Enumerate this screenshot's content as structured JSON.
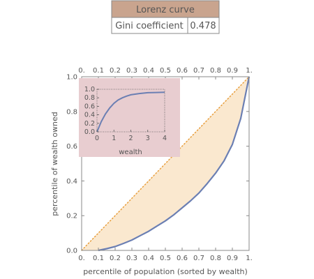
{
  "info_table": {
    "header": "Lorenz curve",
    "row_label": "Gini coefficient",
    "row_value": "0.478"
  },
  "colors": {
    "curve": "#6b7fb3",
    "equality_line": "#e8a040",
    "fill_area": "#fae8cf",
    "inset_background": "#e8cdd0",
    "table_header": "#c9a48e",
    "axis": "#888888"
  },
  "chart_data": [
    {
      "type": "line",
      "xlabel": "percentile of population (sorted by wealth)",
      "ylabel": "percentile of wealth owned",
      "xlim": [
        0,
        1
      ],
      "ylim": [
        0,
        1
      ],
      "x_ticks": [
        "0.",
        "0.1",
        "0.2",
        "0.3",
        "0.4",
        "0.5",
        "0.6",
        "0.7",
        "0.8",
        "0.9",
        "1."
      ],
      "y_ticks": [
        "0.0",
        "0.2",
        "0.4",
        "0.6",
        "0.8",
        "1.0"
      ],
      "grid": false,
      "series": [
        {
          "kind": "equality_line",
          "x": [
            0,
            1
          ],
          "y": [
            0,
            1
          ]
        },
        {
          "kind": "lorenz_curve",
          "x": [
            0.1,
            0.15,
            0.2,
            0.25,
            0.3,
            0.35,
            0.4,
            0.45,
            0.5,
            0.55,
            0.6,
            0.65,
            0.7,
            0.75,
            0.8,
            0.85,
            0.9,
            0.95,
            1.0
          ],
          "y": [
            0.0,
            0.01,
            0.022,
            0.04,
            0.06,
            0.085,
            0.11,
            0.14,
            0.17,
            0.205,
            0.245,
            0.285,
            0.33,
            0.385,
            0.445,
            0.515,
            0.61,
            0.76,
            1.0
          ]
        }
      ]
    },
    {
      "type": "line",
      "xlabel": "wealth",
      "ylabel": "",
      "xlim": [
        0,
        4
      ],
      "ylim": [
        0,
        1
      ],
      "x_ticks": [
        "0",
        "1",
        "2",
        "3",
        "4"
      ],
      "y_ticks": [
        "0.0",
        "0.2",
        "0.4",
        "0.6",
        "0.8",
        "1.0"
      ],
      "grid": false,
      "series": [
        {
          "kind": "cdf",
          "x": [
            0,
            0.25,
            0.5,
            0.75,
            1.0,
            1.25,
            1.5,
            1.75,
            2.0,
            2.5,
            3.0,
            3.5,
            4.0
          ],
          "y": [
            0.0,
            0.24,
            0.42,
            0.56,
            0.67,
            0.75,
            0.8,
            0.84,
            0.87,
            0.9,
            0.92,
            0.925,
            0.93
          ]
        }
      ]
    }
  ]
}
